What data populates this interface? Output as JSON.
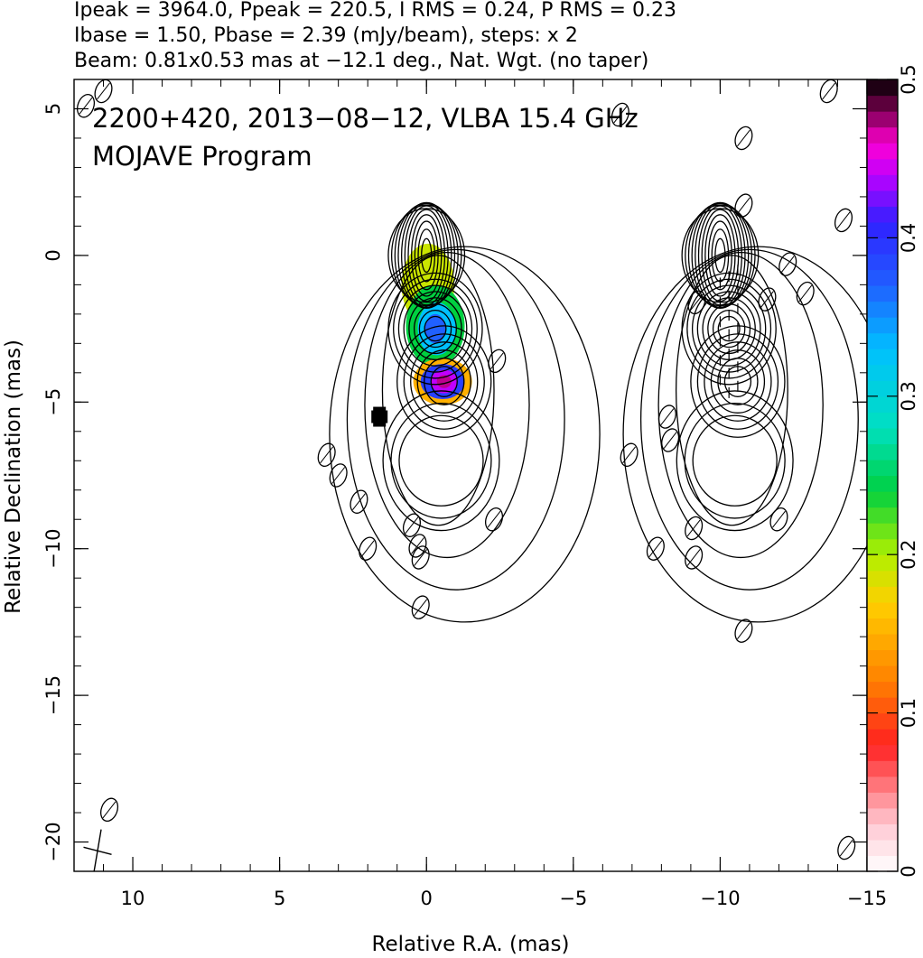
{
  "header": {
    "line1": "Ipeak = 3964.0, Ppeak = 220.5, I RMS = 0.24, P RMS = 0.23",
    "line2": "Ibase = 1.50, Pbase = 2.39 (mJy/beam), steps: x 2",
    "line3": "Beam: 0.81x0.53 mas at −12.1 deg., Nat. Wgt. (no taper)"
  },
  "annotation": {
    "line1": "2200+420, 2013−08−12, VLBA 15.4 GHz",
    "line2": "MOJAVE Program"
  },
  "chart_data": {
    "type": "heatmap",
    "xlabel": "Relative R.A. (mas)",
    "ylabel": "Relative Declination (mas)",
    "xlim": [
      12,
      -15
    ],
    "ylim": [
      -21,
      6
    ],
    "x_ticks": [
      {
        "value": 10,
        "label": "10"
      },
      {
        "value": 5,
        "label": "5"
      },
      {
        "value": 0,
        "label": "0"
      },
      {
        "value": -5,
        "label": "−5"
      },
      {
        "value": -10,
        "label": "−10"
      },
      {
        "value": -15,
        "label": "−15"
      }
    ],
    "y_ticks": [
      {
        "value": 5,
        "label": "5"
      },
      {
        "value": 0,
        "label": "0"
      },
      {
        "value": -5,
        "label": "−5"
      },
      {
        "value": -10,
        "label": "−10"
      },
      {
        "value": -15,
        "label": "−15"
      },
      {
        "value": -20,
        "label": "−20"
      }
    ],
    "colorbar": {
      "range": [
        0,
        0.5
      ],
      "ticks": [
        {
          "value": 0,
          "label": "0"
        },
        {
          "value": 0.1,
          "label": "0.1"
        },
        {
          "value": 0.2,
          "label": "0.2"
        },
        {
          "value": 0.3,
          "label": "0.3"
        },
        {
          "value": 0.4,
          "label": "0.4"
        },
        {
          "value": 0.5,
          "label": "0.5"
        }
      ],
      "stops": [
        {
          "value": 0.0,
          "color": "#ffffff"
        },
        {
          "value": 0.03,
          "color": "#ffc8d2"
        },
        {
          "value": 0.08,
          "color": "#ff2020"
        },
        {
          "value": 0.12,
          "color": "#ff8000"
        },
        {
          "value": 0.17,
          "color": "#ffd000"
        },
        {
          "value": 0.2,
          "color": "#b0f000"
        },
        {
          "value": 0.24,
          "color": "#00d040"
        },
        {
          "value": 0.28,
          "color": "#00e0c0"
        },
        {
          "value": 0.33,
          "color": "#00c0ff"
        },
        {
          "value": 0.37,
          "color": "#2060ff"
        },
        {
          "value": 0.41,
          "color": "#3020ff"
        },
        {
          "value": 0.44,
          "color": "#c000ff"
        },
        {
          "value": 0.46,
          "color": "#ff00d0"
        },
        {
          "value": 0.48,
          "color": "#7a0050"
        },
        {
          "value": 0.5,
          "color": "#000000"
        }
      ]
    },
    "components": [
      {
        "x": 0.0,
        "y": 0.0,
        "level": 11,
        "kind": "core"
      },
      {
        "x": -0.3,
        "y": -2.5,
        "level": 8,
        "kind": "knot"
      },
      {
        "x": -0.6,
        "y": -4.3,
        "level": 6,
        "kind": "knot"
      },
      {
        "x": -0.5,
        "y": -7.0,
        "level": 3,
        "kind": "plume"
      }
    ],
    "pol_patches": [
      {
        "x": -0.05,
        "y": -1.0,
        "rx": 0.9,
        "ry": 1.4,
        "value": 0.19
      },
      {
        "x": -0.3,
        "y": -2.4,
        "rx": 1.0,
        "ry": 1.4,
        "value": 0.24
      },
      {
        "x": -0.35,
        "y": -2.5,
        "rx": 0.65,
        "ry": 0.9,
        "value": 0.33
      },
      {
        "x": -0.3,
        "y": -2.5,
        "rx": 0.35,
        "ry": 0.5,
        "value": 0.37
      },
      {
        "x": -0.55,
        "y": -4.3,
        "rx": 1.0,
        "ry": 0.8,
        "value": 0.15
      },
      {
        "x": -0.55,
        "y": -4.3,
        "rx": 0.75,
        "ry": 0.6,
        "value": 0.39
      },
      {
        "x": -0.6,
        "y": -4.3,
        "rx": 0.45,
        "ry": 0.4,
        "value": 0.44
      },
      {
        "x": -0.6,
        "y": -4.3,
        "rx": 0.25,
        "ry": 0.22,
        "value": 0.47
      }
    ],
    "islands": [
      {
        "x": 11.6,
        "y": 5.1
      },
      {
        "x": 11.0,
        "y": 5.6
      },
      {
        "x": 10.8,
        "y": -18.9
      },
      {
        "x": 3.4,
        "y": -6.8
      },
      {
        "x": 3.0,
        "y": -7.5
      },
      {
        "x": 2.3,
        "y": -8.4
      },
      {
        "x": 2.0,
        "y": -10.0
      },
      {
        "x": 0.5,
        "y": -9.2
      },
      {
        "x": 0.3,
        "y": -9.9
      },
      {
        "x": 0.2,
        "y": -10.3
      },
      {
        "x": 0.2,
        "y": -12.0
      },
      {
        "x": -2.3,
        "y": -9.0
      },
      {
        "x": -2.4,
        "y": -3.6
      },
      {
        "x": -6.6,
        "y": 4.8
      },
      {
        "x": -6.9,
        "y": -6.8
      },
      {
        "x": -7.8,
        "y": -10.0
      },
      {
        "x": -8.2,
        "y": -5.5
      },
      {
        "x": -8.3,
        "y": -6.3
      },
      {
        "x": -9.1,
        "y": -9.3
      },
      {
        "x": -9.1,
        "y": -10.3
      },
      {
        "x": -9.2,
        "y": -1.6
      },
      {
        "x": -10.8,
        "y": 4.0
      },
      {
        "x": -10.8,
        "y": 1.7
      },
      {
        "x": -10.8,
        "y": -12.8
      },
      {
        "x": -11.6,
        "y": -1.5
      },
      {
        "x": -12.0,
        "y": -9.0
      },
      {
        "x": -12.3,
        "y": -0.3
      },
      {
        "x": -12.9,
        "y": -1.3
      },
      {
        "x": -13.7,
        "y": 5.6
      },
      {
        "x": -14.2,
        "y": 1.2
      },
      {
        "x": -14.3,
        "y": -20.2
      }
    ],
    "contour_base_mJy_per_beam": 1.5,
    "contour_step_factor": 2,
    "beam": {
      "major_mas": 0.81,
      "minor_mas": 0.53,
      "pa_deg": -12.1,
      "x": 11.2,
      "y": -20.3
    },
    "marker": {
      "x": 1.6,
      "y": -5.5
    }
  }
}
